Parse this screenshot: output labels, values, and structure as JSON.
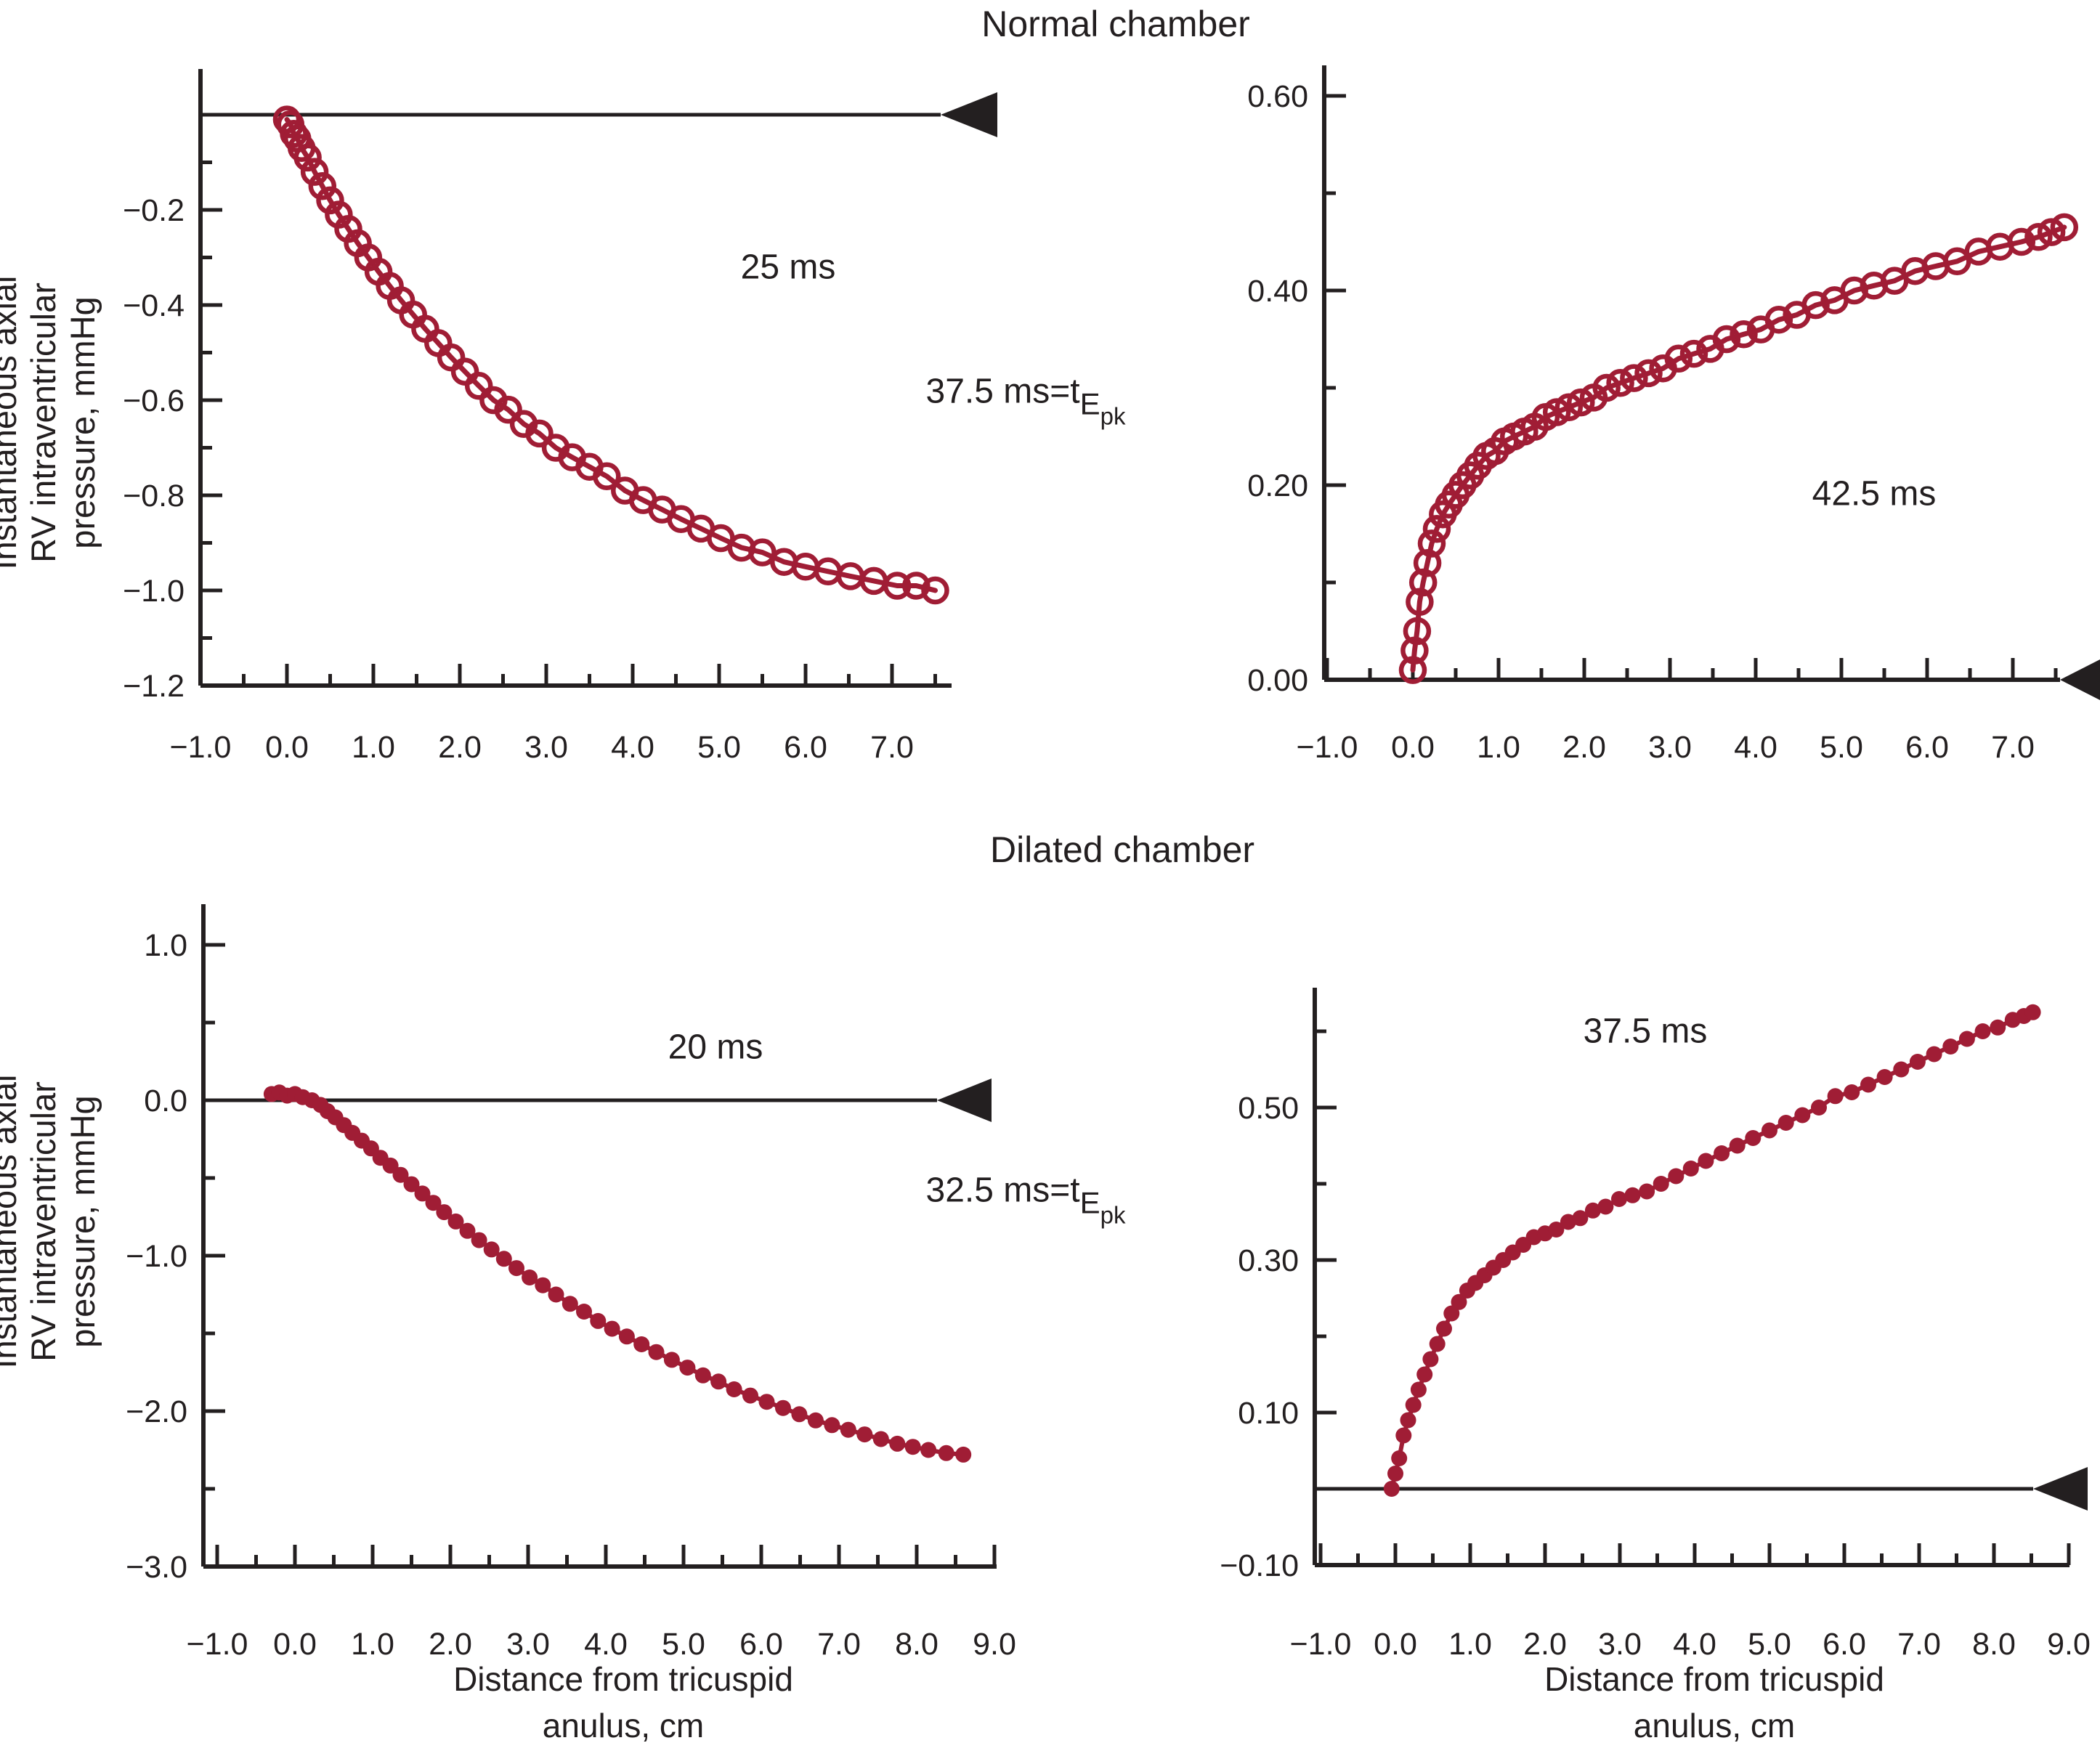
{
  "titles": {
    "top": "Normal chamber",
    "bottom": "Dilated chamber"
  },
  "y_axis_label": {
    "line1": "Instantaneous axial",
    "line2": "RV intraventricular",
    "line3": "pressure, mmHg"
  },
  "x_axis_caption": {
    "line1": "Distance from tricuspid",
    "line2": "anulus, cm"
  },
  "equations": {
    "top": {
      "prefix": "37.5 ms=t",
      "sub": "E",
      "subsub": "pk"
    },
    "bottom": {
      "prefix": "32.5 ms=t",
      "sub": "E",
      "subsub": "pk"
    }
  },
  "colors": {
    "curve": "#A01D35",
    "axis": "#231F20",
    "text": "#231F20",
    "background": "#FFFFFF"
  },
  "chart_data": [
    {
      "id": "normal-25ms",
      "panel": "top-left",
      "group": "Normal chamber",
      "type": "scatter",
      "marker": "open-circle",
      "annotation": "25 ms",
      "ylabel": "Instantaneous axial RV intraventricular pressure, mmHg",
      "xlim": [
        -1.0,
        7.7
      ],
      "ylim": [
        -1.2,
        0.0
      ],
      "xticks": {
        "values": [
          -1,
          0,
          1,
          2,
          3,
          4,
          5,
          6,
          7
        ],
        "labels": [
          "−1.0",
          "0.0",
          "1.0",
          "2.0",
          "3.0",
          "4.0",
          "5.0",
          "6.0",
          "7.0"
        ],
        "minor": [
          -0.5,
          0.5,
          1.5,
          2.5,
          3.5,
          4.5,
          5.5,
          6.5,
          7.5
        ]
      },
      "yticks": {
        "values": [
          -0.2,
          -0.4,
          -0.6,
          -0.8,
          -1.0,
          -1.2
        ],
        "labels": [
          "−0.2",
          "−0.4",
          "−0.6",
          "−0.8",
          "−1.0",
          "−1.2"
        ],
        "minor": [
          -0.1,
          -0.3,
          -0.5,
          -0.7,
          -0.9,
          -1.1
        ]
      },
      "zero_line": {
        "value": 0.0,
        "arrow_direction": "left"
      },
      "points": {
        "x": [
          0.0,
          0.04,
          0.08,
          0.12,
          0.17,
          0.24,
          0.32,
          0.41,
          0.5,
          0.6,
          0.71,
          0.82,
          0.94,
          1.06,
          1.19,
          1.32,
          1.46,
          1.6,
          1.75,
          1.9,
          2.06,
          2.22,
          2.39,
          2.56,
          2.74,
          2.92,
          3.11,
          3.3,
          3.5,
          3.7,
          3.91,
          4.12,
          4.34,
          4.56,
          4.79,
          5.02,
          5.26,
          5.5,
          5.75,
          6.0,
          6.26,
          6.52,
          6.79,
          7.06,
          7.28,
          7.5
        ],
        "y": [
          -0.01,
          -0.02,
          -0.04,
          -0.05,
          -0.07,
          -0.09,
          -0.12,
          -0.15,
          -0.18,
          -0.21,
          -0.24,
          -0.27,
          -0.3,
          -0.33,
          -0.36,
          -0.39,
          -0.42,
          -0.45,
          -0.48,
          -0.51,
          -0.54,
          -0.57,
          -0.6,
          -0.62,
          -0.65,
          -0.67,
          -0.7,
          -0.72,
          -0.74,
          -0.76,
          -0.79,
          -0.81,
          -0.83,
          -0.85,
          -0.87,
          -0.89,
          -0.91,
          -0.92,
          -0.94,
          -0.95,
          -0.96,
          -0.97,
          -0.98,
          -0.99,
          -0.99,
          -1.0
        ]
      }
    },
    {
      "id": "normal-42.5ms",
      "panel": "top-right",
      "group": "Normal chamber",
      "type": "scatter",
      "marker": "open-circle",
      "annotation": "42.5 ms",
      "xlim": [
        -1.0,
        7.7
      ],
      "ylim": [
        0.0,
        0.6
      ],
      "xticks": {
        "values": [
          -1,
          0,
          1,
          2,
          3,
          4,
          5,
          6,
          7
        ],
        "labels": [
          "−1.0",
          "0.0",
          "1.0",
          "2.0",
          "3.0",
          "4.0",
          "5.0",
          "6.0",
          "7.0"
        ],
        "minor": [
          -0.5,
          0.5,
          1.5,
          2.5,
          3.5,
          4.5,
          5.5,
          6.5,
          7.5
        ]
      },
      "yticks": {
        "values": [
          0.6,
          0.4,
          0.2,
          0.0
        ],
        "labels": [
          "0.60",
          "0.40",
          "0.20",
          "0.00"
        ],
        "minor": [
          0.5,
          0.3,
          0.1
        ]
      },
      "zero_line": {
        "value": 0.0,
        "arrow_direction": "left"
      },
      "points": {
        "x": [
          0.0,
          0.02,
          0.05,
          0.08,
          0.12,
          0.17,
          0.22,
          0.28,
          0.35,
          0.42,
          0.5,
          0.58,
          0.67,
          0.76,
          0.86,
          0.96,
          1.07,
          1.18,
          1.3,
          1.42,
          1.55,
          1.68,
          1.82,
          1.96,
          2.11,
          2.26,
          2.42,
          2.58,
          2.75,
          2.92,
          3.1,
          3.28,
          3.47,
          3.66,
          3.86,
          4.06,
          4.27,
          4.48,
          4.7,
          4.92,
          5.15,
          5.38,
          5.62,
          5.86,
          6.1,
          6.35,
          6.6,
          6.85,
          7.1,
          7.3,
          7.45,
          7.6
        ],
        "y": [
          0.01,
          0.03,
          0.05,
          0.08,
          0.1,
          0.12,
          0.14,
          0.155,
          0.17,
          0.18,
          0.19,
          0.2,
          0.21,
          0.22,
          0.23,
          0.235,
          0.245,
          0.25,
          0.255,
          0.26,
          0.27,
          0.275,
          0.28,
          0.285,
          0.29,
          0.3,
          0.305,
          0.31,
          0.315,
          0.32,
          0.33,
          0.335,
          0.34,
          0.35,
          0.355,
          0.36,
          0.37,
          0.375,
          0.385,
          0.39,
          0.4,
          0.405,
          0.41,
          0.42,
          0.425,
          0.43,
          0.44,
          0.445,
          0.45,
          0.455,
          0.46,
          0.465
        ]
      }
    },
    {
      "id": "dilated-20ms",
      "panel": "bottom-left",
      "group": "Dilated chamber",
      "type": "scatter",
      "marker": "filled-circle",
      "annotation": "20 ms",
      "ylabel": "Instantaneous axial RV intraventricular pressure, mmHg",
      "xlabel": "Distance from tricuspid anulus, cm",
      "xlim": [
        -1.0,
        9.0
      ],
      "ylim": [
        -3.0,
        1.0
      ],
      "xticks": {
        "values": [
          -1,
          0,
          1,
          2,
          3,
          4,
          5,
          6,
          7,
          8,
          9
        ],
        "labels": [
          "−1.0",
          "0.0",
          "1.0",
          "2.0",
          "3.0",
          "4.0",
          "5.0",
          "6.0",
          "7.0",
          "8.0",
          "9.0"
        ],
        "minor": [
          -0.5,
          0.5,
          1.5,
          2.5,
          3.5,
          4.5,
          5.5,
          6.5,
          7.5,
          8.5
        ]
      },
      "yticks": {
        "values": [
          1.0,
          0.0,
          -1.0,
          -2.0,
          -3.0
        ],
        "labels": [
          "1.0",
          "0.0",
          "−1.0",
          "−2.0",
          "−3.0"
        ],
        "minor": [
          0.5,
          -0.5,
          -1.5,
          -2.5
        ]
      },
      "zero_line": {
        "value": 0.0,
        "arrow_direction": "left"
      },
      "points": {
        "x": [
          -0.3,
          -0.2,
          -0.1,
          0.0,
          0.1,
          0.22,
          0.33,
          0.42,
          0.52,
          0.63,
          0.74,
          0.86,
          0.98,
          1.1,
          1.23,
          1.36,
          1.5,
          1.64,
          1.78,
          1.92,
          2.07,
          2.22,
          2.37,
          2.53,
          2.69,
          2.85,
          3.02,
          3.19,
          3.36,
          3.54,
          3.72,
          3.9,
          4.08,
          4.27,
          4.46,
          4.65,
          4.85,
          5.05,
          5.25,
          5.45,
          5.65,
          5.86,
          6.07,
          6.28,
          6.49,
          6.7,
          6.91,
          7.12,
          7.33,
          7.54,
          7.75,
          7.95,
          8.15,
          8.38,
          8.6
        ],
        "y": [
          0.04,
          0.05,
          0.03,
          0.04,
          0.02,
          0.0,
          -0.03,
          -0.07,
          -0.11,
          -0.16,
          -0.21,
          -0.26,
          -0.31,
          -0.37,
          -0.42,
          -0.48,
          -0.54,
          -0.6,
          -0.66,
          -0.72,
          -0.78,
          -0.84,
          -0.9,
          -0.96,
          -1.02,
          -1.08,
          -1.14,
          -1.19,
          -1.25,
          -1.31,
          -1.36,
          -1.42,
          -1.47,
          -1.52,
          -1.57,
          -1.62,
          -1.67,
          -1.72,
          -1.77,
          -1.81,
          -1.86,
          -1.9,
          -1.94,
          -1.98,
          -2.02,
          -2.06,
          -2.09,
          -2.12,
          -2.15,
          -2.18,
          -2.21,
          -2.23,
          -2.25,
          -2.27,
          -2.28
        ]
      }
    },
    {
      "id": "dilated-37.5ms",
      "panel": "bottom-right",
      "group": "Dilated chamber",
      "type": "scatter",
      "marker": "filled-circle",
      "annotation": "37.5 ms",
      "xlabel": "Distance from tricuspid anulus, cm",
      "xlim": [
        -1.0,
        9.0
      ],
      "ylim": [
        -0.1,
        0.65
      ],
      "xticks": {
        "values": [
          -1,
          0,
          1,
          2,
          3,
          4,
          5,
          6,
          7,
          8,
          9
        ],
        "labels": [
          "−1.0",
          "0.0",
          "1.0",
          "2.0",
          "3.0",
          "4.0",
          "5.0",
          "6.0",
          "7.0",
          "8.0",
          "9.0"
        ],
        "minor": [
          -0.5,
          0.5,
          1.5,
          2.5,
          3.5,
          4.5,
          5.5,
          6.5,
          7.5,
          8.5
        ]
      },
      "yticks": {
        "values": [
          0.5,
          0.3,
          0.1,
          -0.1
        ],
        "labels": [
          "0.50",
          "0.30",
          "0.10",
          "−0.10"
        ],
        "minor": [
          0.6,
          0.4,
          0.2,
          0.0
        ]
      },
      "zero_line": {
        "value": 0.0,
        "arrow_direction": "left"
      },
      "points": {
        "x": [
          -0.05,
          0.0,
          0.05,
          0.11,
          0.17,
          0.24,
          0.31,
          0.39,
          0.47,
          0.56,
          0.65,
          0.75,
          0.85,
          0.96,
          1.07,
          1.19,
          1.31,
          1.44,
          1.57,
          1.71,
          1.85,
          2.0,
          2.15,
          2.31,
          2.47,
          2.64,
          2.81,
          2.99,
          3.17,
          3.36,
          3.55,
          3.75,
          3.95,
          4.15,
          4.36,
          4.57,
          4.78,
          5.0,
          5.22,
          5.44,
          5.66,
          5.88,
          6.1,
          6.32,
          6.54,
          6.76,
          6.98,
          7.2,
          7.42,
          7.64,
          7.85,
          8.05,
          8.25,
          8.4,
          8.52
        ],
        "y": [
          0.0,
          0.02,
          0.04,
          0.07,
          0.09,
          0.11,
          0.13,
          0.15,
          0.17,
          0.19,
          0.21,
          0.23,
          0.245,
          0.26,
          0.27,
          0.28,
          0.29,
          0.3,
          0.31,
          0.32,
          0.33,
          0.335,
          0.34,
          0.35,
          0.355,
          0.365,
          0.37,
          0.38,
          0.385,
          0.39,
          0.4,
          0.41,
          0.42,
          0.43,
          0.44,
          0.45,
          0.46,
          0.47,
          0.48,
          0.49,
          0.5,
          0.515,
          0.52,
          0.53,
          0.54,
          0.55,
          0.56,
          0.57,
          0.58,
          0.59,
          0.6,
          0.605,
          0.615,
          0.62,
          0.625
        ]
      }
    }
  ]
}
